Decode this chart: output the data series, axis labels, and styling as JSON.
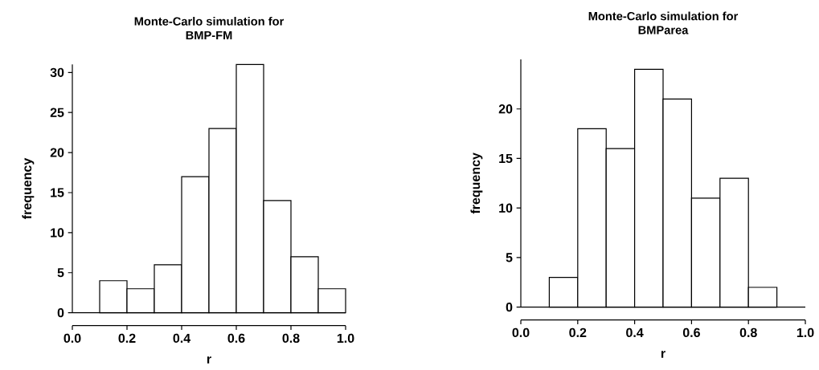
{
  "chart_data": [
    {
      "type": "histogram",
      "title": "Monte-Carlo simulation for",
      "subtitle": "BMP-FM",
      "xlabel": "r",
      "ylabel": "frequency",
      "bins": [
        0,
        0.1,
        0.2,
        0.3,
        0.4,
        0.5,
        0.6,
        0.7,
        0.8,
        0.9,
        1.0
      ],
      "values": [
        0,
        4,
        3,
        6,
        17,
        23,
        31,
        14,
        7,
        3
      ],
      "color": "#ffffff",
      "xlim": [
        0,
        1
      ],
      "ylim": [
        0,
        31
      ],
      "xticks": [
        {
          "value": 0,
          "label": "0.0"
        },
        {
          "value": 0.2,
          "label": "0.2"
        },
        {
          "value": 0.4,
          "label": "0.4"
        },
        {
          "value": 0.6,
          "label": "0.6"
        },
        {
          "value": 0.8,
          "label": "0.8"
        },
        {
          "value": 1.0,
          "label": "1.0"
        }
      ],
      "yticks": [
        0,
        5,
        10,
        15,
        20,
        25,
        30
      ]
    },
    {
      "type": "histogram",
      "title": "Monte-Carlo simulation for",
      "subtitle": "BMParea",
      "xlabel": "r",
      "ylabel": "frequency",
      "bins": [
        0,
        0.1,
        0.2,
        0.3,
        0.4,
        0.5,
        0.6,
        0.7,
        0.8,
        0.9,
        1.0
      ],
      "values": [
        0,
        3,
        18,
        16,
        24,
        21,
        11,
        13,
        2,
        0
      ],
      "color": "#ffffff",
      "xlim": [
        0,
        1
      ],
      "ylim": [
        0,
        25
      ],
      "xticks": [
        {
          "value": 0,
          "label": "0.0"
        },
        {
          "value": 0.2,
          "label": "0.2"
        },
        {
          "value": 0.4,
          "label": "0.4"
        },
        {
          "value": 0.6,
          "label": "0.6"
        },
        {
          "value": 0.8,
          "label": "0.8"
        },
        {
          "value": 1.0,
          "label": "1.0"
        }
      ],
      "yticks": [
        0,
        5,
        10,
        15,
        20
      ]
    }
  ]
}
